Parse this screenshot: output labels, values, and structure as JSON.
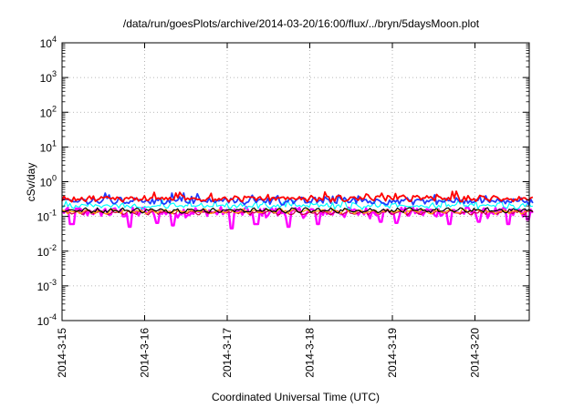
{
  "chart_data": {
    "type": "line",
    "title": "/data/run/goesPlots/archive/2014-03-20/16:00/flux/../bryn/5daysMoon.plot",
    "xlabel": "Coordinated Universal Time (UTC)",
    "ylabel": "cSv/day",
    "y_scale": "log",
    "ylim_exp": [
      -4,
      4
    ],
    "y_tick_exponents": [
      -4,
      -3,
      -2,
      -1,
      0,
      1,
      2,
      3,
      4
    ],
    "y_tick_base": "10",
    "xlim_days": [
      0,
      5.7
    ],
    "x_ticks": [
      {
        "day": 0,
        "label": "2014-3-15"
      },
      {
        "day": 1,
        "label": "2014-3-16"
      },
      {
        "day": 2,
        "label": "2014-3-17"
      },
      {
        "day": 3,
        "label": "2014-3-18"
      },
      {
        "day": 4,
        "label": "2014-3-19"
      },
      {
        "day": 5,
        "label": "2014-3-20"
      }
    ],
    "grid": true,
    "series": [
      {
        "color": "#ff00ff",
        "base": 0.135,
        "spread": 0.3,
        "dips": [
          [
            0.12,
            0.06
          ],
          [
            0.82,
            0.05
          ],
          [
            1.15,
            0.065
          ],
          [
            1.35,
            0.055
          ],
          [
            2.05,
            0.045
          ],
          [
            2.35,
            0.06
          ],
          [
            2.75,
            0.05
          ],
          [
            3.1,
            0.06
          ],
          [
            3.85,
            0.07
          ],
          [
            4.05,
            0.065
          ],
          [
            4.7,
            0.06
          ],
          [
            5.05,
            0.07
          ],
          [
            5.4,
            0.06
          ],
          [
            5.65,
            0.08
          ]
        ]
      },
      {
        "color": "#cc0044",
        "base": 0.13,
        "spread": 0.1
      },
      {
        "color": "#ffa500",
        "base": 0.14,
        "spread": 0.1
      },
      {
        "color": "#000000",
        "base": 0.15,
        "spread": 0.11
      },
      {
        "color": "#00ffff",
        "base": 0.2,
        "spread": 0.14
      },
      {
        "color": "#1e3cff",
        "base": 0.28,
        "spread": 0.18
      },
      {
        "color": "#ff0000",
        "base": 0.33,
        "spread": 0.16
      }
    ]
  }
}
